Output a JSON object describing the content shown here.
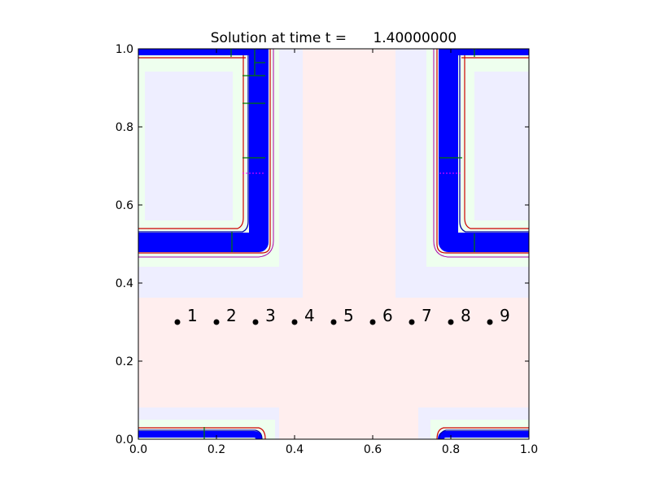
{
  "chart_data": {
    "type": "scatter",
    "title": "Solution at time t =      1.40000000",
    "xlabel": "",
    "ylabel": "",
    "xlim": [
      0.0,
      1.0
    ],
    "ylim": [
      0.0,
      1.0
    ],
    "x_ticks": [
      "0.0",
      "0.2",
      "0.4",
      "0.6",
      "0.8",
      "1.0"
    ],
    "y_ticks": [
      "0.0",
      "0.2",
      "0.4",
      "0.6",
      "0.8",
      "1.0"
    ],
    "gauge_points": {
      "x": [
        0.1,
        0.2,
        0.3,
        0.4,
        0.5,
        0.6,
        0.7,
        0.8,
        0.9
      ],
      "y": [
        0.3,
        0.3,
        0.3,
        0.3,
        0.3,
        0.3,
        0.3,
        0.3,
        0.3
      ],
      "labels": [
        "1",
        "2",
        "3",
        "4",
        "5",
        "6",
        "7",
        "8",
        "9"
      ]
    },
    "colors": {
      "dense_contour": "#0000ff",
      "outer_contour": "#cc0000",
      "inner_contour": "#0000aa",
      "mesh": "#007700",
      "gauge_point": "#000000",
      "region_pink": "#ffeeee",
      "region_lavender": "#eeeeff",
      "region_green": "#eeffee"
    },
    "grid": false,
    "legend": "none"
  }
}
